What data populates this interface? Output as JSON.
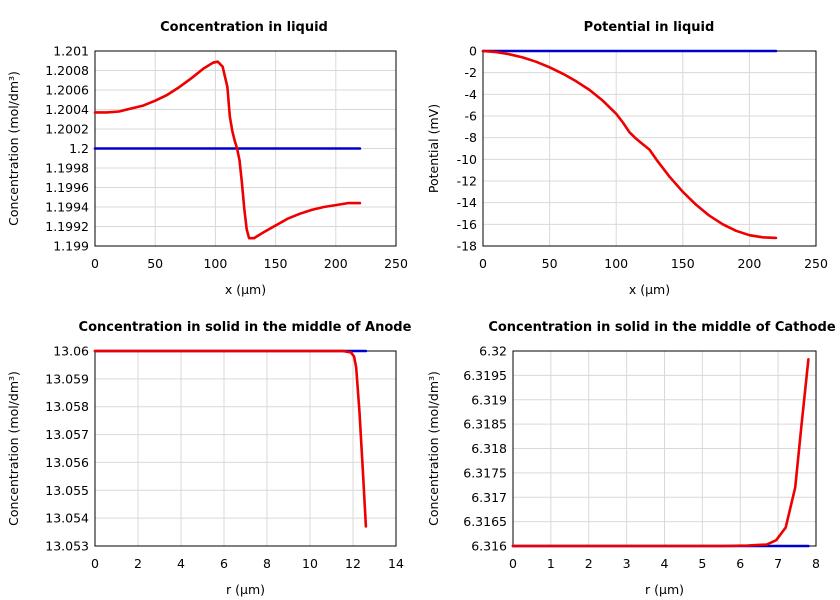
{
  "chart_data": [
    {
      "type": "line",
      "title": "Concentration in liquid",
      "xlabel": "x (µm)",
      "ylabel": "Concentration (mol/dm³)",
      "xlim": [
        0,
        250
      ],
      "ylim": [
        1.199,
        1.201
      ],
      "xticks": [
        "0",
        "50",
        "100",
        "150",
        "200",
        "250"
      ],
      "yticks": [
        "1.199",
        "1.1992",
        "1.1994",
        "1.1996",
        "1.1998",
        "1.2",
        "1.2002",
        "1.2004",
        "1.2006",
        "1.2008",
        "1.201"
      ],
      "grid": true,
      "series": [
        {
          "color": "#0000cc",
          "x": [
            0,
            220
          ],
          "y": [
            1.2,
            1.2
          ]
        },
        {
          "color": "#ee0000",
          "x": [
            0,
            10,
            20,
            30,
            40,
            50,
            60,
            70,
            80,
            90,
            98,
            102,
            106,
            110,
            112,
            114,
            116,
            118,
            120,
            122,
            124,
            126,
            128,
            132,
            136,
            140,
            150,
            160,
            170,
            180,
            190,
            200,
            210,
            220
          ],
          "y": [
            1.20037,
            1.20037,
            1.20038,
            1.20041,
            1.20044,
            1.20049,
            1.20055,
            1.20063,
            1.20072,
            1.20082,
            1.20088,
            1.20089,
            1.20084,
            1.20063,
            1.20033,
            1.20018,
            1.20008,
            1.2,
            1.19988,
            1.19965,
            1.19938,
            1.19917,
            1.19908,
            1.19908,
            1.19911,
            1.19914,
            1.19921,
            1.19928,
            1.19933,
            1.19937,
            1.1994,
            1.19942,
            1.19944,
            1.19944
          ]
        }
      ]
    },
    {
      "type": "line",
      "title": "Potential in liquid",
      "xlabel": "x (µm)",
      "ylabel": "Potential (mV)",
      "xlim": [
        0,
        250
      ],
      "ylim": [
        -18,
        0
      ],
      "xticks": [
        "0",
        "50",
        "100",
        "150",
        "200",
        "250"
      ],
      "yticks": [
        "-18",
        "-16",
        "-14",
        "-12",
        "-10",
        "-8",
        "-6",
        "-4",
        "-2",
        "0"
      ],
      "grid": true,
      "series": [
        {
          "color": "#0000cc",
          "x": [
            0,
            220
          ],
          "y": [
            0,
            0
          ]
        },
        {
          "color": "#ee0000",
          "x": [
            0,
            10,
            20,
            30,
            40,
            50,
            60,
            70,
            80,
            90,
            100,
            105,
            110,
            115,
            120,
            125,
            130,
            140,
            150,
            160,
            170,
            180,
            190,
            200,
            210,
            220
          ],
          "y": [
            0,
            -0.1,
            -0.3,
            -0.6,
            -1.0,
            -1.5,
            -2.1,
            -2.8,
            -3.6,
            -4.6,
            -5.8,
            -6.6,
            -7.5,
            -8.1,
            -8.6,
            -9.1,
            -10.0,
            -11.6,
            -13.0,
            -14.2,
            -15.2,
            -16.0,
            -16.6,
            -17.0,
            -17.2,
            -17.25
          ]
        }
      ]
    },
    {
      "type": "line",
      "title": "Concentration in solid in the middle of Anode",
      "xlabel": "r (µm)",
      "ylabel": "Concentration (mol/dm³)",
      "xlim": [
        0,
        14
      ],
      "ylim": [
        13.053,
        13.06
      ],
      "xticks": [
        "0",
        "2",
        "4",
        "6",
        "8",
        "10",
        "12",
        "14"
      ],
      "yticks": [
        "13.053",
        "13.054",
        "13.055",
        "13.056",
        "13.057",
        "13.058",
        "13.059",
        "13.06"
      ],
      "grid": true,
      "series": [
        {
          "color": "#0000cc",
          "x": [
            0,
            12.6
          ],
          "y": [
            13.06,
            13.06
          ]
        },
        {
          "color": "#ee0000",
          "x": [
            0,
            11.5,
            11.9,
            12.05,
            12.15,
            12.3,
            12.45,
            12.6
          ],
          "y": [
            13.06,
            13.06,
            13.05995,
            13.0598,
            13.0594,
            13.0578,
            13.0558,
            13.0537
          ]
        }
      ]
    },
    {
      "type": "line",
      "title": "Concentration in solid in the middle of Cathode",
      "xlabel": "r (µm)",
      "ylabel": "Concentration (mol/dm³)",
      "xlim": [
        0,
        8
      ],
      "ylim": [
        6.316,
        6.32
      ],
      "xticks": [
        "0",
        "1",
        "2",
        "3",
        "4",
        "5",
        "6",
        "7",
        "8"
      ],
      "yticks": [
        "6.316",
        "6.3165",
        "6.317",
        "6.3175",
        "6.318",
        "6.3185",
        "6.319",
        "6.3195",
        "6.32"
      ],
      "grid": true,
      "series": [
        {
          "color": "#0000cc",
          "x": [
            0,
            7.8
          ],
          "y": [
            6.316,
            6.316
          ]
        },
        {
          "color": "#ee0000",
          "x": [
            0,
            5.5,
            6.2,
            6.7,
            6.95,
            7.2,
            7.45,
            7.62,
            7.8
          ],
          "y": [
            6.316,
            6.316,
            6.31601,
            6.31603,
            6.31612,
            6.31638,
            6.3172,
            6.3185,
            6.31983
          ]
        }
      ]
    }
  ]
}
